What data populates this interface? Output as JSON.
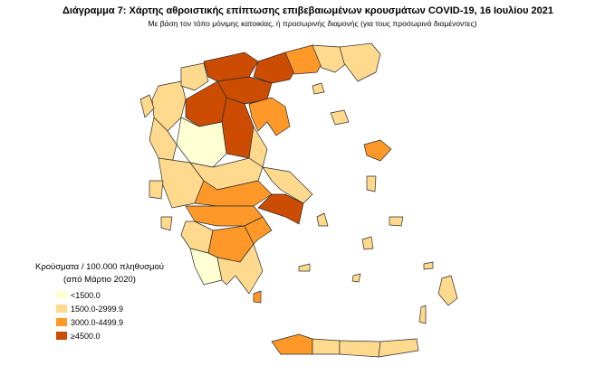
{
  "title": "Διάγραμμα 7: Χάρτης αθροιστικής επίπτωσης επιβεβαιωμένων κρουσμάτων COVID-19, 16 Ιουλίου 2021",
  "subtitle": "Με βάση τον τόπο μόνιμης κατοικίας, ή προσωρινής διαμονής (για τους προσωρινά διαμένοντες)",
  "legend": {
    "title": [
      "Κρούσματα / 100.000 πληθυσμού",
      "(από Μάρτιο 2020)"
    ],
    "items": [
      {
        "label": "<1500.0",
        "color": "#ffffd4"
      },
      {
        "label": "1500.0-2999.9",
        "color": "#fed98e"
      },
      {
        "label": "3000.0-4499.9",
        "color": "#fe9929"
      },
      {
        "label": "≥4500.0",
        "color": "#cc4c02"
      }
    ]
  }
}
